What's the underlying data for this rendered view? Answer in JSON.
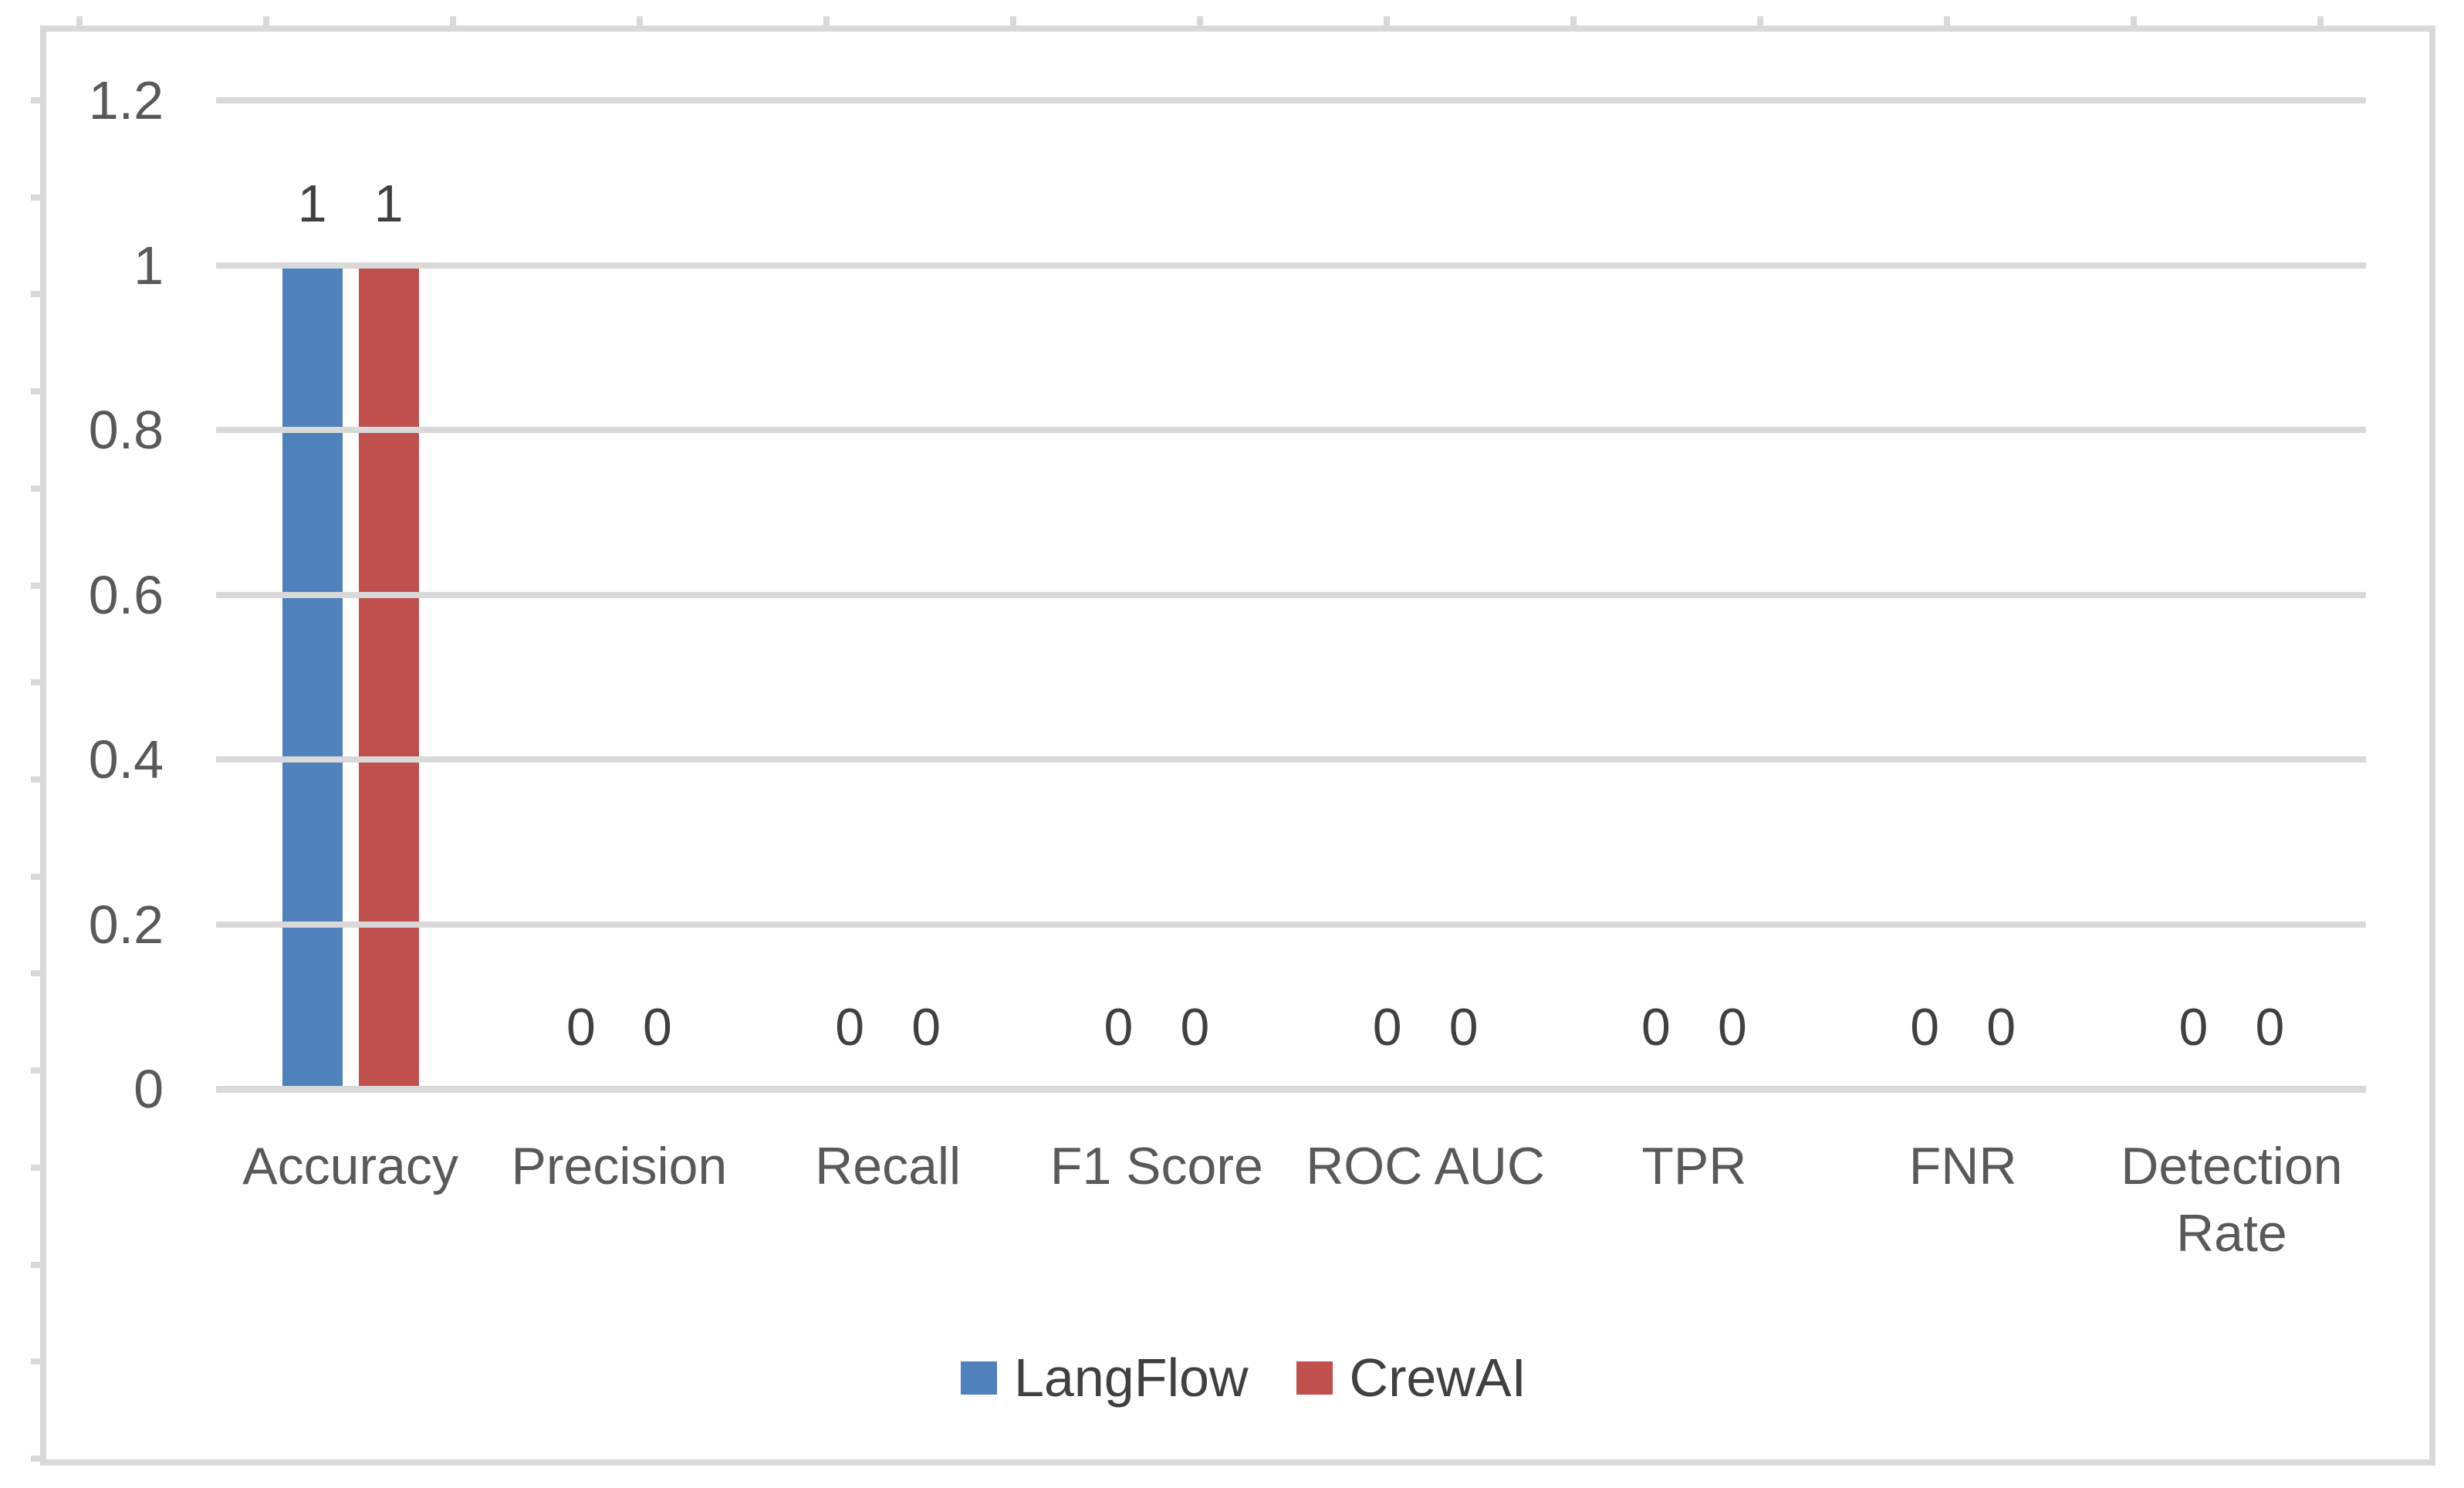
{
  "chart_data": {
    "type": "bar",
    "title": "",
    "categories": [
      "Accuracy",
      "Precision",
      "Recall",
      "F1 Score",
      "ROC AUC",
      "TPR",
      "FNR",
      "Detection Rate"
    ],
    "series": [
      {
        "name": "LangFlow",
        "color": "#4F81BD",
        "values": [
          1,
          0,
          0,
          0,
          0,
          0,
          0,
          0
        ]
      },
      {
        "name": "CrewAI",
        "color": "#C0504D",
        "values": [
          1,
          0,
          0,
          0,
          0,
          0,
          0,
          0
        ]
      }
    ],
    "xlabel": "",
    "ylabel": "",
    "ylim": [
      0,
      1.2
    ],
    "yticks": [
      0,
      0.2,
      0.4,
      0.6,
      0.8,
      1,
      1.2
    ],
    "ytick_labels": [
      "0",
      "0.2",
      "0.4",
      "0.6",
      "0.8",
      "1",
      "1.2"
    ],
    "grid": true,
    "gridline_color": "#D9D9D9",
    "axis_line_color": "#D9D9D9",
    "data_labels": true,
    "data_label_color": "#404040",
    "axis_text_color": "#595959",
    "legend_position": "bottom",
    "legend_entries": [
      "LangFlow",
      "CrewAI"
    ]
  }
}
